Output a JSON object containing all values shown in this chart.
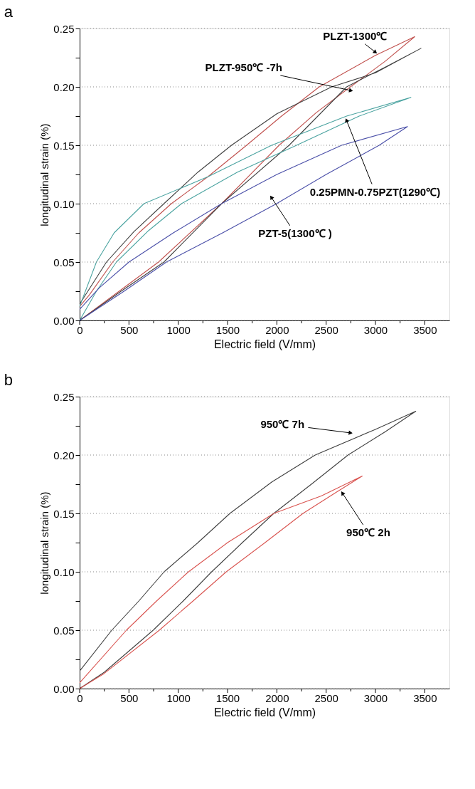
{
  "chart_data": [
    {
      "type": "line",
      "title": "a",
      "xlabel": "Electric field (V/mm)",
      "ylabel": "longitudinal strain (%)",
      "xlim": [
        0,
        3750
      ],
      "ylim": [
        0,
        0.25
      ],
      "xticks": [
        0,
        {
          "value": 250,
          "label": null
        },
        500,
        {
          "value": 750,
          "label": null
        },
        1000,
        {
          "value": 1250,
          "label": null
        },
        1500,
        {
          "value": 1750,
          "label": null
        },
        2000,
        {
          "value": 2250,
          "label": null
        },
        2500,
        {
          "value": 2750,
          "label": null
        },
        3000,
        {
          "value": 3250,
          "label": null
        },
        3500
      ],
      "yticks": [
        {
          "value": 0,
          "label": "0.00"
        },
        {
          "value": 0.025,
          "label": null
        },
        0.05,
        {
          "value": 0.075,
          "label": null
        },
        {
          "value": 0.1,
          "label": "0.10"
        },
        {
          "value": 0.125,
          "label": null
        },
        0.15,
        {
          "value": 0.175,
          "label": null
        },
        {
          "value": 0.2,
          "label": "0.20"
        },
        {
          "value": 0.225,
          "label": null
        },
        0.25
      ],
      "grid": "y",
      "marker": "none",
      "line_style": "solid",
      "legend": false,
      "series": [
        {
          "color": "#c0504d",
          "x": [
            0,
            400,
            800,
            1440,
            2023,
            2400,
            2746,
            3100,
            3398,
            3000,
            2430,
            2048,
            1693,
            1300,
            930,
            600,
            335,
            100,
            0
          ],
          "values": [
            0,
            0.025,
            0.05,
            0.1,
            0.15,
            0.178,
            0.2,
            0.222,
            0.243,
            0.227,
            0.2,
            0.175,
            0.15,
            0.123,
            0.1,
            0.075,
            0.05,
            0.022,
            0.012
          ]
        },
        {
          "color": "#404040",
          "x": [
            0,
            420,
            855,
            1440,
            2124,
            2708,
            3100,
            3462,
            3000,
            2556,
            2000,
            1540,
            1200,
            855,
            550,
            272,
            0
          ],
          "values": [
            0,
            0.025,
            0.05,
            0.1,
            0.15,
            0.2,
            0.217,
            0.233,
            0.212,
            0.2,
            0.177,
            0.15,
            0.127,
            0.1,
            0.076,
            0.05,
            0.014
          ]
        },
        {
          "color": "#4aa3a0",
          "x": [
            0,
            170,
            373,
            700,
            1033,
            1600,
            2200,
            2835,
            3360,
            2708,
            1947,
            1300,
            652,
            350,
            170,
            0
          ],
          "values": [
            0,
            0.025,
            0.05,
            0.077,
            0.1,
            0.127,
            0.15,
            0.175,
            0.191,
            0.175,
            0.15,
            0.123,
            0.1,
            0.075,
            0.05,
            0.012
          ]
        },
        {
          "color": "#4a4fa8",
          "x": [
            0,
            450,
            880,
            1450,
            1997,
            2500,
            3038,
            3325,
            2657,
            2000,
            1440,
            950,
            500,
            200,
            0
          ],
          "values": [
            0,
            0.025,
            0.05,
            0.075,
            0.1,
            0.125,
            0.15,
            0.166,
            0.15,
            0.125,
            0.1,
            0.075,
            0.05,
            0.028,
            0.0095
          ]
        }
      ],
      "annotations": [
        {
          "text": "PLZT-1300℃",
          "x": 2995,
          "y": 0.23
        },
        {
          "text": "PLZT-950℃ -7h",
          "x": 2746,
          "y": 0.197
        },
        {
          "text": "0.25PMN-0.75PZT(1290℃)",
          "x": 2708,
          "y": 0.171
        },
        {
          "text": "PZT-5(1300℃ )",
          "x": 1947,
          "y": 0.105
        }
      ]
    },
    {
      "type": "line",
      "title": "b",
      "xlabel": "Electric field (V/mm)",
      "ylabel": "longitudinal strain (%)",
      "xlim": [
        0,
        3750
      ],
      "ylim": [
        0,
        0.25
      ],
      "xticks": [
        0,
        {
          "value": 250,
          "label": null
        },
        500,
        {
          "value": 750,
          "label": null
        },
        1000,
        {
          "value": 1250,
          "label": null
        },
        1500,
        {
          "value": 1750,
          "label": null
        },
        2000,
        {
          "value": 2250,
          "label": null
        },
        2500,
        {
          "value": 2750,
          "label": null
        },
        3000,
        {
          "value": 3250,
          "label": null
        },
        3500
      ],
      "yticks": [
        {
          "value": 0,
          "label": "0.00"
        },
        {
          "value": 0.025,
          "label": null
        },
        0.05,
        {
          "value": 0.075,
          "label": null
        },
        {
          "value": 0.1,
          "label": "0.10"
        },
        {
          "value": 0.125,
          "label": null
        },
        0.15,
        {
          "value": 0.175,
          "label": null
        },
        {
          "value": 0.2,
          "label": "0.20"
        },
        {
          "value": 0.225,
          "label": null
        },
        0.25
      ],
      "grid": "y",
      "marker": "none",
      "line_style": "solid",
      "legend": false,
      "series": [
        {
          "color": "#404040",
          "x": [
            0,
            250,
            746,
            1050,
            1339,
            1650,
            1969,
            2350,
            2722,
            3100,
            3409,
            3000,
            2389,
            1950,
            1524,
            1200,
            857,
            600,
            326,
            0
          ],
          "values": [
            0,
            0.014,
            0.05,
            0.075,
            0.1,
            0.125,
            0.15,
            0.175,
            0.2,
            0.22,
            0.2375,
            0.222,
            0.2,
            0.177,
            0.15,
            0.125,
            0.1,
            0.075,
            0.05,
            0.015
          ]
        },
        {
          "color": "#d9534f",
          "x": [
            0,
            250,
            808,
            1150,
            1487,
            1880,
            2265,
            2600,
            2866,
            2450,
            1969,
            1500,
            1104,
            780,
            474,
            0
          ],
          "values": [
            0,
            0.013,
            0.05,
            0.075,
            0.1,
            0.125,
            0.15,
            0.168,
            0.182,
            0.165,
            0.15,
            0.125,
            0.1,
            0.075,
            0.05,
            0.005
          ]
        }
      ],
      "annotations": [
        {
          "text": "950℃ 7h",
          "x": 2742,
          "y": 0.219
        },
        {
          "text": "950℃ 2h",
          "x": 2668,
          "y": 0.167
        }
      ]
    }
  ]
}
